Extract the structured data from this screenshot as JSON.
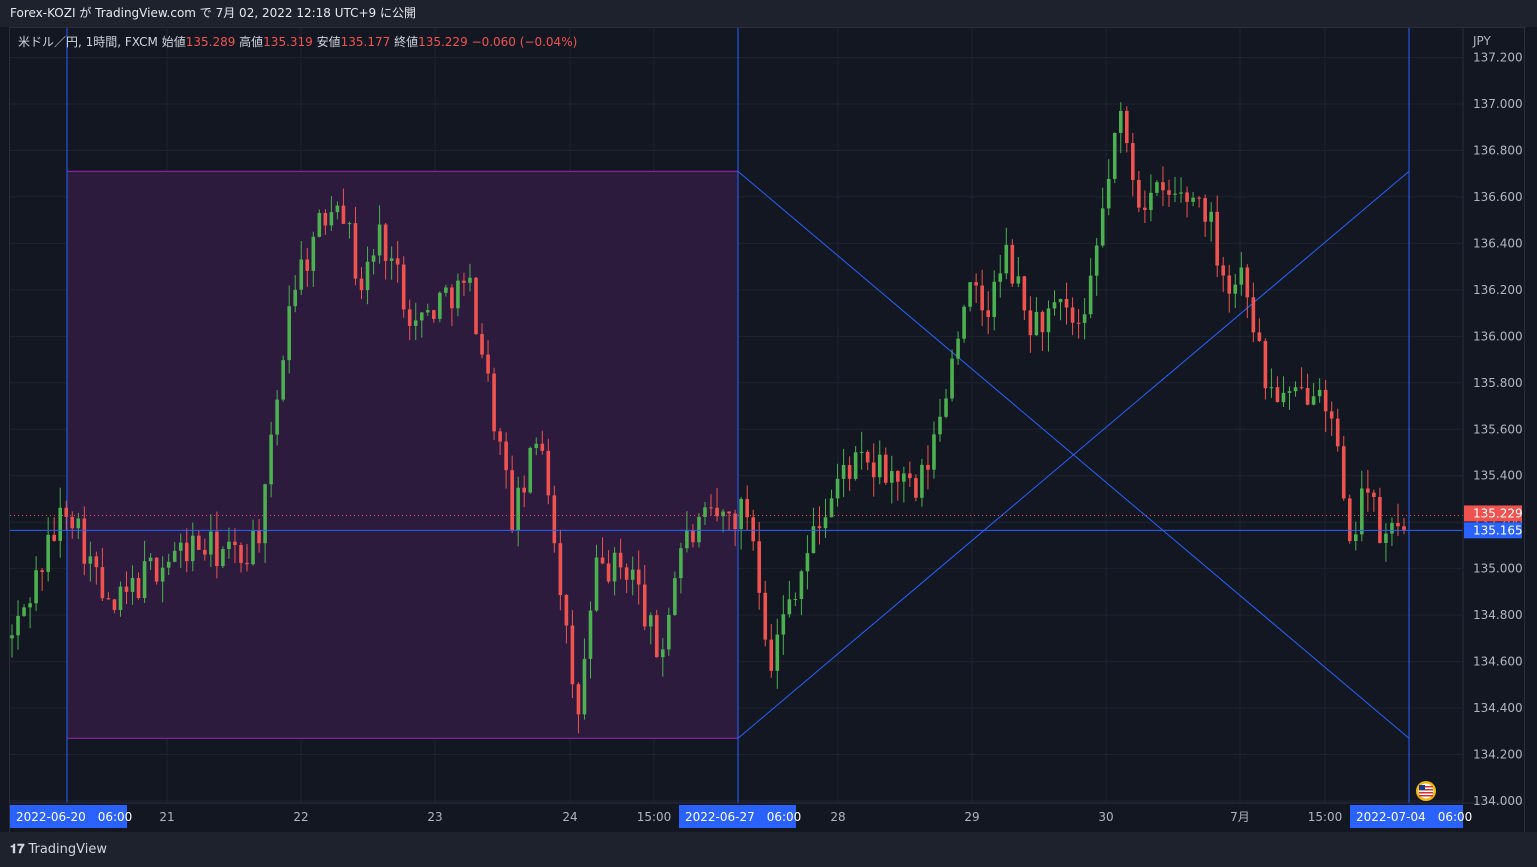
{
  "header": {
    "published_text": "Forex-KOZI が TradingView.com で 7月 02, 2022 12:18 UTC+9 に公開"
  },
  "legend": {
    "symbol": "米ドル／円, 1時間, FXCM",
    "open_label": "始値",
    "open_value": "135.289",
    "high_label": "高値",
    "high_value": "135.319",
    "low_label": "安値",
    "low_value": "135.177",
    "close_label": "終値",
    "close_value": "135.229",
    "change": "−0.060 (−0.04%)"
  },
  "footer": {
    "brand": "TradingView"
  },
  "colors": {
    "background": "#131722",
    "up": "#4caf50",
    "down": "#ef5350",
    "box_fill": "#2d1b3e",
    "box_border": "#9c27b0",
    "line": "#2962ff",
    "date_badge": "#2962ff"
  },
  "chart_data": {
    "type": "candlestick",
    "symbol": "USD/JPY",
    "interval": "1h",
    "currency_label": "JPY",
    "ylim": [
      134.0,
      137.2
    ],
    "y_ticks": [
      "137.200",
      "137.000",
      "136.800",
      "136.600",
      "136.400",
      "136.200",
      "136.000",
      "135.800",
      "135.600",
      "135.400",
      "135.200",
      "135.000",
      "134.800",
      "134.600",
      "134.400",
      "134.200",
      "134.000"
    ],
    "x_ticks": [
      "21",
      "22",
      "23",
      "24",
      "15:00",
      "28",
      "29",
      "30",
      "7月",
      "15:00"
    ],
    "date_badges": [
      "2022-06-20　06:00",
      "2022-06-27　06:00",
      "2022-07-04　06:00"
    ],
    "price_labels": [
      {
        "text": "135.229",
        "value": 135.229,
        "kind": "last"
      },
      {
        "text": "135.165",
        "value": 135.165,
        "kind": "line"
      }
    ],
    "range_box": {
      "high": 136.71,
      "low": 134.27
    },
    "horizontal_line": 135.165,
    "anchors": [
      {
        "t": 0.0,
        "close": 134.7
      },
      {
        "t": 0.04,
        "close": 135.3
      },
      {
        "t": 0.07,
        "close": 134.8
      },
      {
        "t": 0.1,
        "close": 135.0
      },
      {
        "t": 0.13,
        "close": 135.1
      },
      {
        "t": 0.165,
        "close": 135.05
      },
      {
        "t": 0.18,
        "close": 135.2
      },
      {
        "t": 0.2,
        "close": 136.2
      },
      {
        "t": 0.22,
        "close": 136.45
      },
      {
        "t": 0.235,
        "close": 136.65
      },
      {
        "t": 0.25,
        "close": 136.2
      },
      {
        "t": 0.265,
        "close": 136.45
      },
      {
        "t": 0.29,
        "close": 136.05
      },
      {
        "t": 0.315,
        "close": 136.2
      },
      {
        "t": 0.33,
        "close": 136.2
      },
      {
        "t": 0.36,
        "close": 135.2
      },
      {
        "t": 0.38,
        "close": 135.6
      },
      {
        "t": 0.395,
        "close": 134.9
      },
      {
        "t": 0.405,
        "close": 134.3
      },
      {
        "t": 0.42,
        "close": 135.0
      },
      {
        "t": 0.445,
        "close": 135.0
      },
      {
        "t": 0.465,
        "close": 134.6
      },
      {
        "t": 0.48,
        "close": 135.1
      },
      {
        "t": 0.5,
        "close": 135.2
      },
      {
        "t": 0.53,
        "close": 135.25
      },
      {
        "t": 0.545,
        "close": 134.6
      },
      {
        "t": 0.56,
        "close": 134.9
      },
      {
        "t": 0.58,
        "close": 135.2
      },
      {
        "t": 0.6,
        "close": 135.45
      },
      {
        "t": 0.635,
        "close": 135.4
      },
      {
        "t": 0.65,
        "close": 135.3
      },
      {
        "t": 0.665,
        "close": 135.6
      },
      {
        "t": 0.685,
        "close": 136.2
      },
      {
        "t": 0.7,
        "close": 136.1
      },
      {
        "t": 0.715,
        "close": 136.35
      },
      {
        "t": 0.73,
        "close": 136.05
      },
      {
        "t": 0.755,
        "close": 136.1
      },
      {
        "t": 0.77,
        "close": 136.0
      },
      {
        "t": 0.785,
        "close": 136.6
      },
      {
        "t": 0.795,
        "close": 136.95
      },
      {
        "t": 0.81,
        "close": 136.6
      },
      {
        "t": 0.83,
        "close": 136.6
      },
      {
        "t": 0.855,
        "close": 136.6
      },
      {
        "t": 0.875,
        "close": 136.2
      },
      {
        "t": 0.885,
        "close": 136.3
      },
      {
        "t": 0.9,
        "close": 135.8
      },
      {
        "t": 0.92,
        "close": 135.7
      },
      {
        "t": 0.94,
        "close": 135.85
      },
      {
        "t": 0.955,
        "close": 135.4
      },
      {
        "t": 0.96,
        "close": 135.0
      },
      {
        "t": 0.97,
        "close": 135.4
      },
      {
        "t": 0.985,
        "close": 135.1
      },
      {
        "t": 1.0,
        "close": 135.23
      }
    ]
  }
}
